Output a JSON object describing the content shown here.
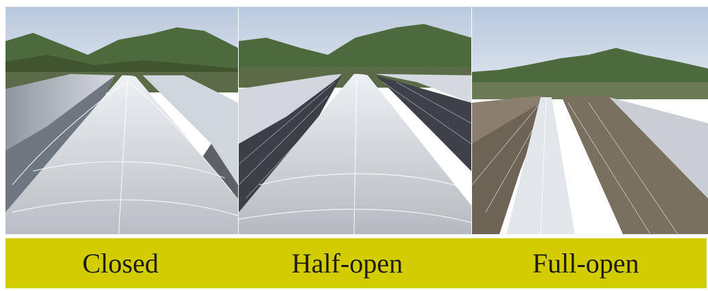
{
  "figure": {
    "panels": [
      {
        "label": "Closed",
        "state": "closed"
      },
      {
        "label": "Half-open",
        "state": "half-open"
      },
      {
        "label": "Full-open",
        "state": "full-open"
      }
    ],
    "colors": {
      "caption_bar": "#d3cd00",
      "caption_text": "#1c1c14",
      "sky": "#c9d6e6",
      "mountain": "#4a6638",
      "film": "#d8dde2"
    }
  }
}
